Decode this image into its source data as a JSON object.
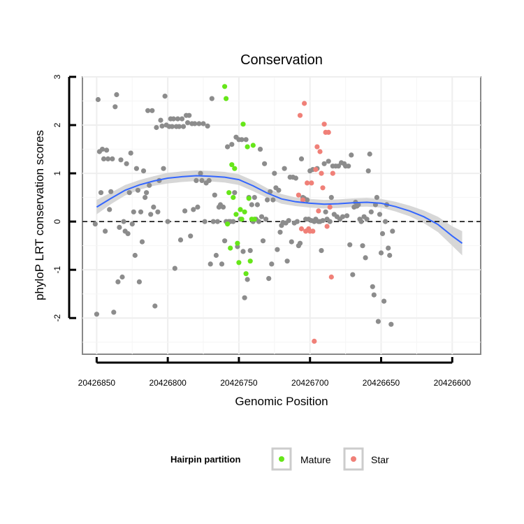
{
  "chart_data": {
    "type": "scatter",
    "title": "Conservation",
    "xlabel": "Genomic Position",
    "ylabel": "phyloP LRT conservation scores",
    "x_reversed": true,
    "xlim": [
      20426860,
      20426580
    ],
    "ylim": [
      -2.75,
      3.0
    ],
    "x_ticks": [
      20426850,
      20426800,
      20426750,
      20426700,
      20426650,
      20426600
    ],
    "x_tick_labels": [
      "20426850",
      "20426800",
      "20426750",
      "20426700",
      "20426650",
      "20426600"
    ],
    "y_ticks": [
      -2,
      -1,
      0,
      1,
      2,
      3
    ],
    "y_tick_labels": [
      "-2",
      "-1",
      "0",
      "1",
      "2",
      "3"
    ],
    "reference_line": {
      "y": 0,
      "style": "dashed"
    },
    "legend": {
      "title": "Hairpin partition",
      "position": "bottom",
      "entries": [
        {
          "name": "Mature",
          "color": "#66e619"
        },
        {
          "name": "Star",
          "color": "#f08078"
        }
      ]
    },
    "colors": {
      "other": "#8c8c8c",
      "Mature": "#66e619",
      "Star": "#f08078",
      "smooth": "#3366ff",
      "band": "#d0d0d0"
    },
    "smooth": {
      "x": [
        20426850,
        20426840,
        20426830,
        20426820,
        20426810,
        20426800,
        20426790,
        20426780,
        20426770,
        20426760,
        20426750,
        20426740,
        20426730,
        20426720,
        20426710,
        20426700,
        20426690,
        20426680,
        20426670,
        20426660,
        20426650,
        20426640,
        20426630,
        20426620,
        20426610,
        20426600,
        20426593
      ],
      "y": [
        0.3,
        0.48,
        0.65,
        0.76,
        0.84,
        0.9,
        0.93,
        0.95,
        0.94,
        0.92,
        0.87,
        0.74,
        0.59,
        0.47,
        0.41,
        0.38,
        0.36,
        0.37,
        0.39,
        0.4,
        0.38,
        0.31,
        0.22,
        0.1,
        -0.06,
        -0.3,
        -0.45
      ],
      "upper": [
        0.45,
        0.6,
        0.76,
        0.86,
        0.94,
        1.01,
        1.04,
        1.06,
        1.05,
        1.03,
        0.98,
        0.85,
        0.69,
        0.57,
        0.5,
        0.47,
        0.45,
        0.46,
        0.48,
        0.49,
        0.47,
        0.41,
        0.33,
        0.23,
        0.1,
        -0.1,
        -0.2
      ],
      "lower": [
        0.15,
        0.36,
        0.54,
        0.66,
        0.74,
        0.79,
        0.82,
        0.84,
        0.83,
        0.81,
        0.76,
        0.63,
        0.49,
        0.37,
        0.32,
        0.29,
        0.27,
        0.28,
        0.3,
        0.31,
        0.29,
        0.21,
        0.11,
        -0.03,
        -0.22,
        -0.5,
        -0.7
      ]
    },
    "series": [
      {
        "name": "Other",
        "points": [
          [
            20426851,
            -0.05
          ],
          [
            20426850,
            -1.92
          ],
          [
            20426849,
            2.53
          ],
          [
            20426848,
            1.45
          ],
          [
            20426847,
            0.6
          ],
          [
            20426846,
            1.5
          ],
          [
            20426845,
            1.3
          ],
          [
            20426844,
            -0.2
          ],
          [
            20426843,
            1.48
          ],
          [
            20426842,
            1.3
          ],
          [
            20426841,
            0.25
          ],
          [
            20426840,
            0.62
          ],
          [
            20426839,
            1.3
          ],
          [
            20426838,
            -1.88
          ],
          [
            20426837,
            2.38
          ],
          [
            20426836,
            2.63
          ],
          [
            20426835,
            -1.25
          ],
          [
            20426834,
            -0.12
          ],
          [
            20426833,
            1.28
          ],
          [
            20426832,
            -1.15
          ],
          [
            20426831,
            0.0
          ],
          [
            20426830,
            -0.2
          ],
          [
            20426829,
            1.2
          ],
          [
            20426828,
            -0.25
          ],
          [
            20426827,
            0.6
          ],
          [
            20426826,
            1.42
          ],
          [
            20426825,
            -0.05
          ],
          [
            20426824,
            0.2
          ],
          [
            20426823,
            -0.7
          ],
          [
            20426822,
            1.1
          ],
          [
            20426821,
            0.65
          ],
          [
            20426820,
            -1.25
          ],
          [
            20426819,
            0.2
          ],
          [
            20426818,
            -0.42
          ],
          [
            20426817,
            1.05
          ],
          [
            20426816,
            0.5
          ],
          [
            20426815,
            0.6
          ],
          [
            20426814,
            2.3
          ],
          [
            20426813,
            0.75
          ],
          [
            20426812,
            0.15
          ],
          [
            20426811,
            2.3
          ],
          [
            20426810,
            0.3
          ],
          [
            20426809,
            -1.75
          ],
          [
            20426808,
            1.95
          ],
          [
            20426807,
            0.2
          ],
          [
            20426806,
            0.85
          ],
          [
            20426805,
            2.1
          ],
          [
            20426804,
            1.98
          ],
          [
            20426803,
            1.1
          ],
          [
            20426802,
            2.6
          ],
          [
            20426801,
            2.0
          ],
          [
            20426800,
            0.0
          ],
          [
            20426799,
            1.97
          ],
          [
            20426798,
            2.13
          ],
          [
            20426797,
            1.97
          ],
          [
            20426796,
            2.13
          ],
          [
            20426795,
            -0.97
          ],
          [
            20426794,
            1.97
          ],
          [
            20426793,
            2.13
          ],
          [
            20426792,
            1.97
          ],
          [
            20426791,
            -0.38
          ],
          [
            20426790,
            2.13
          ],
          [
            20426789,
            1.97
          ],
          [
            20426788,
            0.22
          ],
          [
            20426787,
            2.2
          ],
          [
            20426786,
            2.05
          ],
          [
            20426785,
            2.2
          ],
          [
            20426784,
            -0.3
          ],
          [
            20426783,
            2.03
          ],
          [
            20426782,
            0.25
          ],
          [
            20426781,
            2.03
          ],
          [
            20426780,
            0.85
          ],
          [
            20426779,
            0.3
          ],
          [
            20426778,
            2.03
          ],
          [
            20426777,
            1.0
          ],
          [
            20426776,
            0.85
          ],
          [
            20426775,
            2.03
          ],
          [
            20426774,
            0.0
          ],
          [
            20426773,
            0.8
          ],
          [
            20426772,
            1.98
          ],
          [
            20426771,
            0.85
          ],
          [
            20426770,
            -0.88
          ],
          [
            20426769,
            2.55
          ],
          [
            20426768,
            0.0
          ],
          [
            20426767,
            0.55
          ],
          [
            20426766,
            -0.7
          ],
          [
            20426765,
            0.0
          ],
          [
            20426764,
            0.3
          ],
          [
            20426763,
            0.35
          ],
          [
            20426762,
            -0.88
          ],
          [
            20426761,
            0.3
          ],
          [
            20426760,
            -0.4
          ],
          [
            20426759,
            0.0
          ],
          [
            20426758,
            1.55
          ],
          [
            20426757,
            0.0
          ],
          [
            20426756,
            0.0
          ],
          [
            20426755,
            1.6
          ],
          [
            20426754,
            0.0
          ],
          [
            20426753,
            0.6
          ],
          [
            20426752,
            1.75
          ],
          [
            20426751,
            -0.52
          ],
          [
            20426750,
            1.7
          ],
          [
            20426749,
            0.05
          ],
          [
            20426748,
            1.7
          ],
          [
            20426747,
            -0.62
          ],
          [
            20426746,
            -1.58
          ],
          [
            20426745,
            1.7
          ],
          [
            20426744,
            -1.2
          ],
          [
            20426743,
            0.5
          ],
          [
            20426742,
            -0.6
          ],
          [
            20426741,
            0.35
          ],
          [
            20426740,
            0.0
          ],
          [
            20426739,
            0.5
          ],
          [
            20426738,
            0.05
          ],
          [
            20426737,
            0.35
          ],
          [
            20426736,
            0.0
          ],
          [
            20426735,
            1.5
          ],
          [
            20426734,
            0.1
          ],
          [
            20426733,
            -0.4
          ],
          [
            20426732,
            1.2
          ],
          [
            20426731,
            0.05
          ],
          [
            20426730,
            0.45
          ],
          [
            20426729,
            -1.18
          ],
          [
            20426728,
            0.62
          ],
          [
            20426727,
            -0.88
          ],
          [
            20426726,
            0.45
          ],
          [
            20426725,
            1.0
          ],
          [
            20426724,
            0.7
          ],
          [
            20426723,
            -0.58
          ],
          [
            20426722,
            0.65
          ],
          [
            20426721,
            -0.22
          ],
          [
            20426720,
            -0.08
          ],
          [
            20426719,
            -0.02
          ],
          [
            20426718,
            1.1
          ],
          [
            20426717,
            -0.03
          ],
          [
            20426716,
            -0.82
          ],
          [
            20426715,
            0.02
          ],
          [
            20426714,
            0.92
          ],
          [
            20426713,
            -0.42
          ],
          [
            20426712,
            0.92
          ],
          [
            20426711,
            -0.03
          ],
          [
            20426710,
            0.9
          ],
          [
            20426709,
            0.0
          ],
          [
            20426708,
            -0.5
          ],
          [
            20426707,
            -0.45
          ],
          [
            20426706,
            1.3
          ],
          [
            20426705,
            0.5
          ],
          [
            20426704,
            0.48
          ],
          [
            20426703,
            0.05
          ],
          [
            20426702,
            0.45
          ],
          [
            20426701,
            0.05
          ],
          [
            20426700,
            1.05
          ],
          [
            20426699,
            0.02
          ],
          [
            20426698,
            1.08
          ],
          [
            20426697,
            0.0
          ],
          [
            20426696,
            0.05
          ],
          [
            20426695,
            1.1
          ],
          [
            20426694,
            0.0
          ],
          [
            20426693,
            0.0
          ],
          [
            20426692,
            -0.6
          ],
          [
            20426691,
            0.02
          ],
          [
            20426690,
            1.2
          ],
          [
            20426689,
            0.2
          ],
          [
            20426688,
            0.05
          ],
          [
            20426687,
            1.25
          ],
          [
            20426686,
            0.0
          ],
          [
            20426685,
            0.5
          ],
          [
            20426684,
            1.15
          ],
          [
            20426683,
            0.15
          ],
          [
            20426682,
            1.15
          ],
          [
            20426681,
            0.1
          ],
          [
            20426680,
            1.15
          ],
          [
            20426679,
            0.05
          ],
          [
            20426678,
            1.22
          ],
          [
            20426677,
            0.1
          ],
          [
            20426676,
            1.2
          ],
          [
            20426675,
            1.15
          ],
          [
            20426674,
            0.12
          ],
          [
            20426673,
            1.15
          ],
          [
            20426672,
            -0.48
          ],
          [
            20426671,
            1.38
          ],
          [
            20426670,
            -1.1
          ],
          [
            20426669,
            0.3
          ],
          [
            20426668,
            0.4
          ],
          [
            20426667,
            0.32
          ],
          [
            20426666,
            0.35
          ],
          [
            20426665,
            0.05
          ],
          [
            20426664,
            0.0
          ],
          [
            20426663,
            -0.5
          ],
          [
            20426662,
            0.1
          ],
          [
            20426661,
            -0.75
          ],
          [
            20426660,
            0.05
          ],
          [
            20426659,
            1.05
          ],
          [
            20426658,
            1.4
          ],
          [
            20426657,
            0.2
          ],
          [
            20426656,
            -1.35
          ],
          [
            20426655,
            -1.52
          ],
          [
            20426654,
            0.35
          ],
          [
            20426653,
            0.5
          ],
          [
            20426652,
            -2.07
          ],
          [
            20426651,
            0.15
          ],
          [
            20426650,
            -0.65
          ],
          [
            20426649,
            -0.25
          ],
          [
            20426648,
            -1.65
          ],
          [
            20426647,
            0.0
          ],
          [
            20426646,
            0.35
          ],
          [
            20426645,
            -0.55
          ],
          [
            20426644,
            -0.7
          ],
          [
            20426643,
            -2.13
          ],
          [
            20426642,
            -0.2
          ]
        ]
      },
      {
        "name": "Mature",
        "points": [
          [
            20426760,
            2.8
          ],
          [
            20426759,
            2.55
          ],
          [
            20426758,
            -0.05
          ],
          [
            20426757,
            0.6
          ],
          [
            20426756,
            -0.55
          ],
          [
            20426755,
            1.18
          ],
          [
            20426754,
            0.5
          ],
          [
            20426753,
            1.1
          ],
          [
            20426752,
            0.15
          ],
          [
            20426751,
            -0.45
          ],
          [
            20426750,
            -0.85
          ],
          [
            20426749,
            0.25
          ],
          [
            20426748,
            0.05
          ],
          [
            20426747,
            2.02
          ],
          [
            20426746,
            0.2
          ],
          [
            20426745,
            -1.08
          ],
          [
            20426744,
            1.55
          ],
          [
            20426743,
            0.48
          ],
          [
            20426742,
            -0.82
          ],
          [
            20426741,
            0.05
          ],
          [
            20426740,
            1.58
          ],
          [
            20426739,
            0.05
          ]
        ]
      },
      {
        "name": "Star",
        "points": [
          [
            20426708,
            0.55
          ],
          [
            20426707,
            2.2
          ],
          [
            20426706,
            -0.15
          ],
          [
            20426705,
            0.45
          ],
          [
            20426704,
            2.45
          ],
          [
            20426703,
            -0.2
          ],
          [
            20426702,
            0.8
          ],
          [
            20426701,
            -0.15
          ],
          [
            20426700,
            -0.2
          ],
          [
            20426699,
            0.8
          ],
          [
            20426698,
            -0.2
          ],
          [
            20426697,
            -2.48
          ],
          [
            20426696,
            1.08
          ],
          [
            20426695,
            1.55
          ],
          [
            20426694,
            0.22
          ],
          [
            20426693,
            1.45
          ],
          [
            20426692,
            1.0
          ],
          [
            20426691,
            0.7
          ],
          [
            20426690,
            2.02
          ],
          [
            20426689,
            1.85
          ],
          [
            20426688,
            -0.1
          ],
          [
            20426687,
            1.85
          ],
          [
            20426686,
            0.3
          ],
          [
            20426685,
            -1.15
          ],
          [
            20426684,
            1.0
          ]
        ]
      }
    ]
  }
}
